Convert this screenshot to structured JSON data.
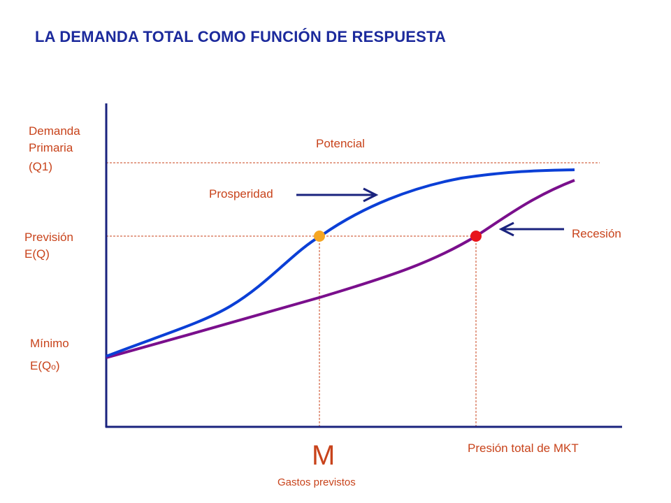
{
  "title": "LA DEMANDA TOTAL COMO FUNCIÓN DE RESPUESTA",
  "labels": {
    "demanda_line1": "Demanda",
    "demanda_line2": "Primaria",
    "demanda_line3": "(Q1)",
    "potencial": "Potencial",
    "prosperidad": "Prosperidad",
    "recesion": "Recesión",
    "prevision_line1": "Previsión",
    "prevision_line2": "E(Q)",
    "minimo_line1": "Mínimo",
    "minimo_line2": "E(Q",
    "minimo_sub": "o",
    "minimo_close": ")",
    "x_axis": "Presión total de MKT",
    "m_letter": "M",
    "m_sub": "Gastos previstos"
  },
  "colors": {
    "title": "#1c2a9c",
    "text": "#c8431b",
    "prosperity_curve": "#0b3fd6",
    "recession_curve": "#7a0f8c",
    "arrow": "#1a237e",
    "prosperity_point": "#f5a623",
    "recession_point": "#e8151b",
    "guides": "#c8431b",
    "axis": "#1a237e"
  }
}
